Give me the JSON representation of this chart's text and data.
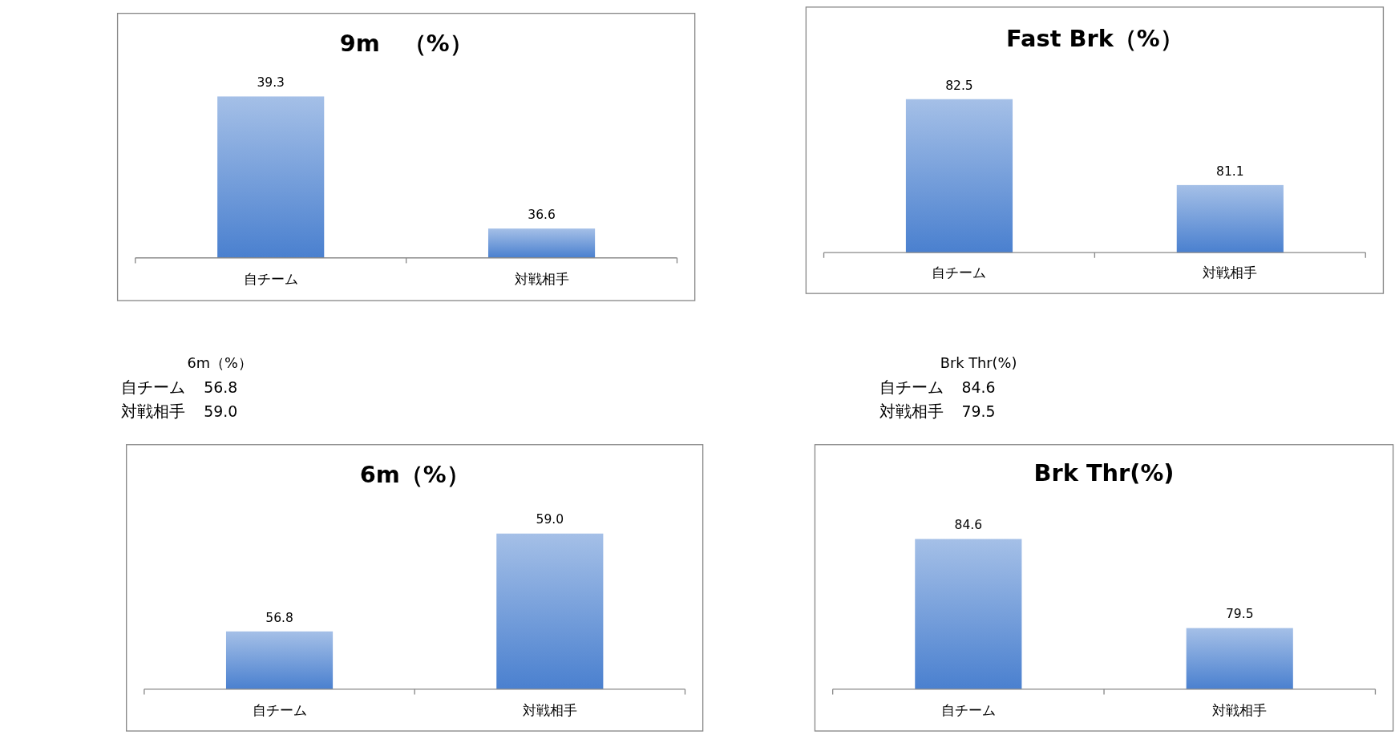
{
  "chart_data": [
    {
      "type": "bar",
      "title": "9m　（%）",
      "categories": [
        "自チーム",
        "対戦相手"
      ],
      "values": [
        39.3,
        36.6
      ],
      "value_labels": [
        "39.3",
        "36.6"
      ],
      "color": "#4a80cf",
      "ylim": [
        36,
        41
      ],
      "tick_labels": "x"
    },
    {
      "type": "bar",
      "title": "Fast Brk（%）",
      "categories": [
        "自チーム",
        "対戦相手"
      ],
      "values": [
        82.5,
        81.1
      ],
      "value_labels": [
        "82.5",
        "81.1"
      ],
      "color": "#4a80cf",
      "ylim": [
        80,
        84
      ],
      "tick_labels": "x"
    },
    {
      "type": "other",
      "title": "6m（%）",
      "categories": [
        "自チーム",
        "対戦相手"
      ],
      "values": [
        56.8,
        59.0
      ],
      "value_labels": [
        "56.8",
        "59.0"
      ]
    },
    {
      "type": "other",
      "title": "Brk Thr(%)",
      "categories": [
        "自チーム",
        "対戦相手"
      ],
      "values": [
        84.6,
        79.5
      ],
      "value_labels": [
        "84.6",
        "79.5"
      ]
    },
    {
      "type": "bar",
      "title": "6m（%）",
      "categories": [
        "自チーム",
        "対戦相手"
      ],
      "values": [
        56.8,
        59.0
      ],
      "value_labels": [
        "56.8",
        "59.0"
      ],
      "color": "#4a80cf",
      "ylim": [
        55.5,
        61
      ],
      "tick_labels": "x"
    },
    {
      "type": "bar",
      "title": "Brk Thr(%)",
      "categories": [
        "自チーム",
        "対戦相手"
      ],
      "values": [
        84.6,
        79.5
      ],
      "value_labels": [
        "84.6",
        "79.5"
      ],
      "color": "#4a80cf",
      "ylim": [
        76,
        90
      ],
      "tick_labels": "x"
    }
  ]
}
